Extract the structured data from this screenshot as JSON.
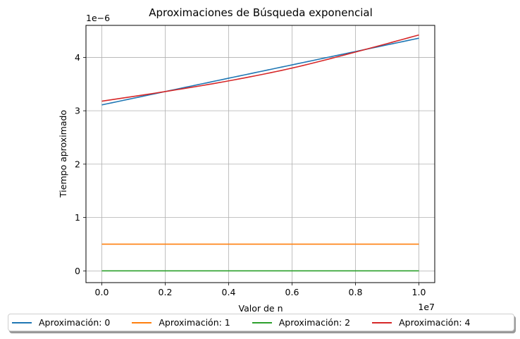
{
  "chart_data": {
    "type": "line",
    "title": "Aproximaciones de Búsqueda exponencial",
    "xlabel": "Valor de n",
    "ylabel": "Tiempo aproximado",
    "x_offset_text": "1e7",
    "y_offset_text": "1e−6",
    "x_scale_factor": 10000000,
    "y_scale_factor": 1e-06,
    "xlim": [
      -0.05,
      1.05
    ],
    "ylim": [
      -0.22,
      4.6
    ],
    "xticks": [
      0.0,
      0.2,
      0.4,
      0.6,
      0.8,
      1.0
    ],
    "xtick_labels": [
      "0.0",
      "0.2",
      "0.4",
      "0.6",
      "0.8",
      "1.0"
    ],
    "yticks": [
      0,
      1,
      2,
      3,
      4
    ],
    "ytick_labels": [
      "0",
      "1",
      "2",
      "3",
      "4"
    ],
    "grid": true,
    "legend_position": "bottom-center, below plot, 4 columns",
    "x": [
      0.0,
      0.2,
      0.4,
      0.6,
      0.8,
      1.0
    ],
    "series": [
      {
        "name": "Aproximación: 0",
        "color": "#1f77b4",
        "values": [
          3.11,
          3.36,
          3.61,
          3.86,
          4.11,
          4.36
        ]
      },
      {
        "name": "Aproximación: 1",
        "color": "#ff7f0e",
        "values": [
          0.5,
          0.5,
          0.5,
          0.5,
          0.5,
          0.5
        ]
      },
      {
        "name": "Aproximación: 2",
        "color": "#2ca02c",
        "values": [
          0.0,
          0.0,
          0.0,
          0.0,
          0.0,
          0.0
        ]
      },
      {
        "name": "Aproximación: 4",
        "color": "#d62728",
        "values": [
          3.18,
          3.36,
          3.56,
          3.8,
          4.1,
          4.42
        ]
      }
    ]
  }
}
